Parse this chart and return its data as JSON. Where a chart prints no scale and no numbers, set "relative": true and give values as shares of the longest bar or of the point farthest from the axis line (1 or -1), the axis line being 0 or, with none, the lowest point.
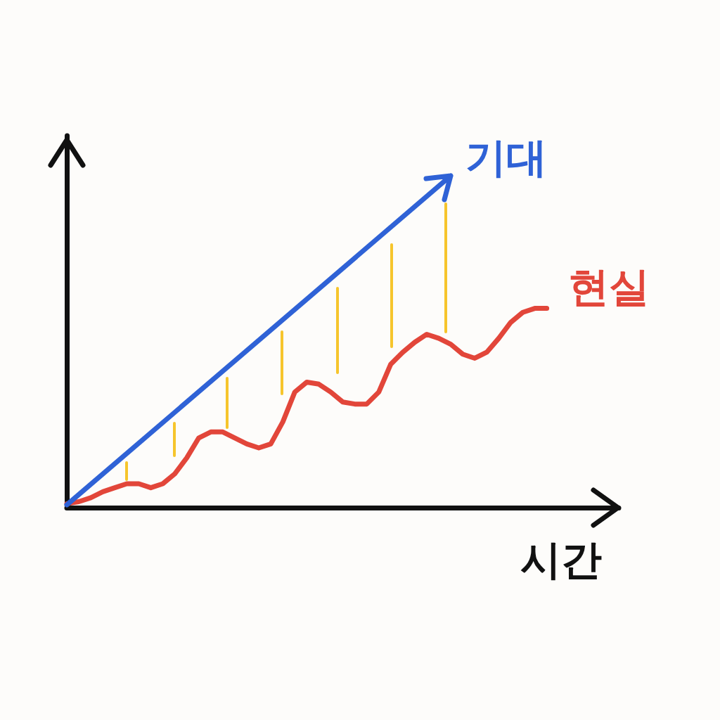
{
  "chart_data": {
    "type": "line",
    "relative": true,
    "xlabel": "시간",
    "legend": false,
    "grid": false,
    "line_style": "solid",
    "annotations": [
      "기대"
    ],
    "categories": [
      null,
      null,
      null,
      null,
      null,
      null,
      null,
      null,
      null,
      null,
      null,
      null,
      null,
      null,
      null,
      null,
      null,
      null,
      null,
      null,
      null,
      null,
      null,
      null,
      null,
      null,
      null,
      null,
      null,
      null,
      null,
      null,
      null,
      null,
      null,
      null,
      null,
      null,
      null,
      null,
      null,
      null,
      null,
      null,
      null,
      null,
      null
    ],
    "series": [
      {
        "name": "현실",
        "color": "#e2463a",
        "values": [
          0.02,
          0.03,
          0.05,
          0.08,
          0.1,
          0.12,
          0.12,
          0.1,
          0.12,
          0.17,
          0.25,
          0.35,
          0.38,
          0.38,
          0.35,
          0.32,
          0.3,
          0.32,
          0.43,
          0.58,
          0.63,
          0.62,
          0.58,
          0.53,
          0.52,
          0.52,
          0.58,
          0.72,
          0.78,
          0.83,
          0.87,
          0.85,
          0.82,
          0.77,
          0.75,
          0.78,
          0.85,
          0.93,
          0.98,
          1,
          1,
          null,
          null,
          null,
          null,
          null,
          null
        ]
      }
    ]
  }
}
